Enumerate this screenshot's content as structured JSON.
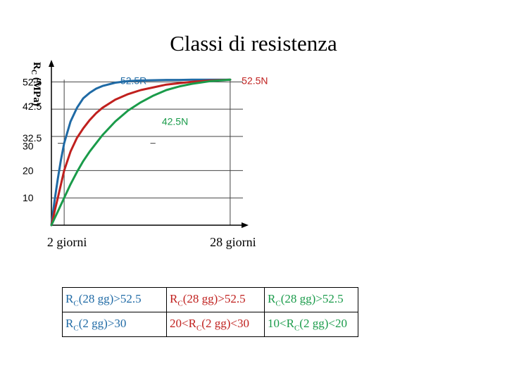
{
  "title": "Classi di resistenza",
  "colors": {
    "blue": "#1f6aa5",
    "red": "#c0201e",
    "green": "#1a9b4a",
    "axis": "#000000",
    "grid": "#444444"
  },
  "chart_data": {
    "type": "line",
    "title": "Classi di resistenza",
    "ylabel_main": "R",
    "ylabel_sub": "C",
    "ylabel_unit": " (MPa)",
    "xlabel": "",
    "xlim": [
      0,
      30
    ],
    "ylim": [
      0,
      58
    ],
    "grid": true,
    "yticks": [
      {
        "value": 52.5,
        "label": "52.5"
      },
      {
        "value": 42.5,
        "label": "42.5"
      },
      {
        "value": 32.5,
        "label": "32.5"
      },
      {
        "value": 30,
        "label": "30"
      },
      {
        "value": 20,
        "label": "20"
      },
      {
        "value": 10,
        "label": "10"
      }
    ],
    "xticks": [
      {
        "value": 2,
        "label": "2 giorni"
      },
      {
        "value": 28,
        "label": "28 giorni"
      }
    ],
    "series": [
      {
        "name": "52.5R",
        "color": "#1f6aa5",
        "x": [
          0,
          0.5,
          1,
          1.5,
          2,
          3,
          4,
          5,
          6,
          7,
          8,
          10,
          12,
          14,
          16,
          18,
          20,
          22,
          25,
          28
        ],
        "y": [
          0,
          9,
          17,
          24,
          30,
          38,
          43,
          46.5,
          48.5,
          50,
          51,
          52.2,
          52.8,
          53,
          53.1,
          53.2,
          53.2,
          53.3,
          53.3,
          53.3
        ]
      },
      {
        "name": "",
        "color": "#c0201e",
        "x": [
          0,
          0.5,
          1,
          1.5,
          2,
          3,
          4,
          5,
          6,
          7,
          8,
          10,
          12,
          14,
          16,
          18,
          20,
          22,
          25,
          28
        ],
        "y": [
          0,
          5,
          10,
          15,
          20,
          27,
          32,
          35.5,
          38.5,
          41,
          43,
          46,
          48,
          49.5,
          50.5,
          51.5,
          52,
          52.5,
          53,
          53.3
        ]
      },
      {
        "name": "42.5N",
        "color": "#1a9b4a",
        "x": [
          0,
          0.5,
          1,
          1.5,
          2,
          3,
          4,
          5,
          6,
          7,
          8,
          10,
          12,
          14,
          16,
          18,
          20,
          22,
          25,
          28
        ],
        "y": [
          0,
          2.5,
          5,
          7.5,
          10,
          15,
          19.5,
          23.5,
          27,
          30,
          33,
          38,
          42,
          45,
          47.5,
          49.5,
          50.8,
          51.8,
          52.8,
          53.3
        ]
      }
    ],
    "annotations": [
      {
        "text": "52.5R",
        "color": "#1f6aa5",
        "x": 10.8,
        "y": 53
      },
      {
        "text": "52.5N",
        "color": "#c0201e",
        "x": 29.8,
        "y": 53
      },
      {
        "text": "42.5N",
        "color": "#1a9b4a",
        "x": 17.3,
        "y": 38
      }
    ],
    "guide_segments": [
      {
        "y": 30,
        "x_from": 1,
        "x_to": 1.9
      },
      {
        "y": 30,
        "x_from": 15.5,
        "x_to": 16.3
      }
    ]
  },
  "legend": {
    "rows": [
      [
        {
          "main": "R",
          "sub": "C",
          "rest": "(28 gg)>52.5",
          "color": "#1f6aa5"
        },
        {
          "main": "R",
          "sub": "C",
          "rest": "(28 gg)>52.5",
          "color": "#c0201e"
        },
        {
          "main": "R",
          "sub": "C",
          "rest": "(28 gg)>52.5",
          "color": "#1a9b4a"
        }
      ],
      [
        {
          "main": "R",
          "sub": "C",
          "rest": "(2 gg)>30",
          "color": "#1f6aa5"
        },
        {
          "main": "20<R",
          "sub": "C",
          "rest": "(2 gg)<30",
          "color": "#c0201e"
        },
        {
          "main": "10<R",
          "sub": "C",
          "rest": "(2 gg)<20",
          "color": "#1a9b4a"
        }
      ]
    ]
  }
}
